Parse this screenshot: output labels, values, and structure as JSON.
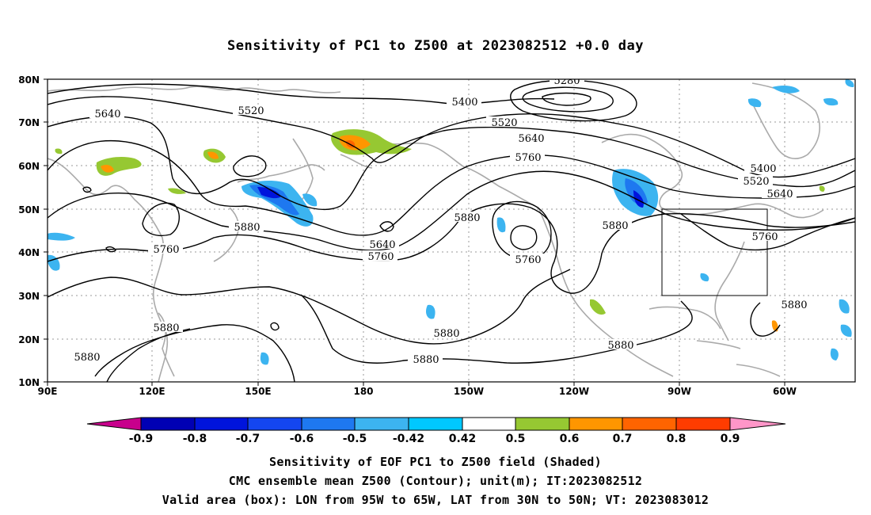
{
  "title": "Sensitivity of PC1 to Z500 at 2023082512 +0.0 day",
  "lat_labels": [
    "80N",
    "70N",
    "60N",
    "50N",
    "40N",
    "30N",
    "20N",
    "10N"
  ],
  "lon_labels": [
    "90E",
    "120E",
    "150E",
    "180",
    "150W",
    "120W",
    "90W",
    "60W"
  ],
  "contour_labels": [
    "5280",
    "5400",
    "5520",
    "5640",
    "5520",
    "5640",
    "5760",
    "5400",
    "5520",
    "5640",
    "5760",
    "5880",
    "5880",
    "5760",
    "5640",
    "5760",
    "5760",
    "5880",
    "5880",
    "5880",
    "5880",
    "5880",
    "5880",
    "5880"
  ],
  "colorbar": {
    "labels": [
      "-0.9",
      "-0.8",
      "-0.7",
      "-0.6",
      "-0.5",
      "-0.42",
      "0.42",
      "0.5",
      "0.6",
      "0.7",
      "0.8",
      "0.9"
    ],
    "colors": [
      "#c8008c",
      "#0000b4",
      "#0014dc",
      "#1446f0",
      "#1e78f0",
      "#3cb4f0",
      "#00c8ff",
      "#ffffff",
      "#96c832",
      "#ff9600",
      "#ff6400",
      "#ff3c00",
      "#ff0000",
      "#ff96c8"
    ]
  },
  "captions": [
    "Sensitivity of EOF PC1 to Z500 field (Shaded)",
    "CMC ensemble mean Z500 (Contour); unit(m); IT:2023082512",
    "Valid area (box): LON from 95W to 65W, LAT from 30N to 50N; VT: 2023083012"
  ]
}
